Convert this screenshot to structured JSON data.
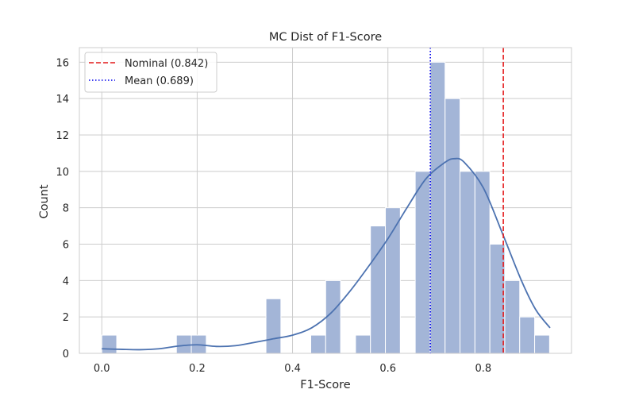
{
  "chart_data": {
    "type": "bar",
    "title": "MC Dist of F1-Score",
    "xlabel": "F1-Score",
    "ylabel": "Count",
    "xlim": [
      -0.047,
      0.985
    ],
    "ylim": [
      0,
      16.8
    ],
    "x_ticks": [
      0.0,
      0.2,
      0.4,
      0.6,
      0.8
    ],
    "x_tick_labels": [
      "0.0",
      "0.2",
      "0.4",
      "0.6",
      "0.8"
    ],
    "y_ticks": [
      0,
      2,
      4,
      6,
      8,
      10,
      12,
      14,
      16
    ],
    "y_tick_labels": [
      "0",
      "2",
      "4",
      "6",
      "8",
      "10",
      "12",
      "14",
      "16"
    ],
    "grid": true,
    "legend_position": "top-left",
    "bin_width": 0.0313,
    "bins": [
      {
        "start": 0.0,
        "count": 1
      },
      {
        "start": 0.0313,
        "count": 0
      },
      {
        "start": 0.0626,
        "count": 0
      },
      {
        "start": 0.0939,
        "count": 0
      },
      {
        "start": 0.1252,
        "count": 0
      },
      {
        "start": 0.1565,
        "count": 1
      },
      {
        "start": 0.1878,
        "count": 1
      },
      {
        "start": 0.2191,
        "count": 0
      },
      {
        "start": 0.2504,
        "count": 0
      },
      {
        "start": 0.2817,
        "count": 0
      },
      {
        "start": 0.313,
        "count": 0
      },
      {
        "start": 0.3443,
        "count": 3
      },
      {
        "start": 0.3756,
        "count": 0
      },
      {
        "start": 0.4069,
        "count": 0
      },
      {
        "start": 0.4382,
        "count": 1
      },
      {
        "start": 0.4695,
        "count": 4
      },
      {
        "start": 0.5008,
        "count": 0
      },
      {
        "start": 0.5321,
        "count": 1
      },
      {
        "start": 0.5634,
        "count": 7
      },
      {
        "start": 0.5947,
        "count": 8
      },
      {
        "start": 0.626,
        "count": 0
      },
      {
        "start": 0.6573,
        "count": 10
      },
      {
        "start": 0.6886,
        "count": 16
      },
      {
        "start": 0.7199,
        "count": 14
      },
      {
        "start": 0.7512,
        "count": 10
      },
      {
        "start": 0.7825,
        "count": 10
      },
      {
        "start": 0.8138,
        "count": 6
      },
      {
        "start": 0.8451,
        "count": 4
      },
      {
        "start": 0.8764,
        "count": 2
      },
      {
        "start": 0.9077,
        "count": 1
      }
    ],
    "kde": {
      "name": "KDE",
      "points": [
        [
          0.0,
          0.25
        ],
        [
          0.04,
          0.22
        ],
        [
          0.08,
          0.2
        ],
        [
          0.12,
          0.25
        ],
        [
          0.16,
          0.4
        ],
        [
          0.2,
          0.47
        ],
        [
          0.24,
          0.38
        ],
        [
          0.28,
          0.42
        ],
        [
          0.32,
          0.6
        ],
        [
          0.36,
          0.8
        ],
        [
          0.4,
          1.0
        ],
        [
          0.44,
          1.4
        ],
        [
          0.48,
          2.2
        ],
        [
          0.52,
          3.4
        ],
        [
          0.56,
          4.8
        ],
        [
          0.6,
          6.3
        ],
        [
          0.64,
          8.0
        ],
        [
          0.68,
          9.6
        ],
        [
          0.72,
          10.5
        ],
        [
          0.74,
          10.7
        ],
        [
          0.76,
          10.5
        ],
        [
          0.8,
          9.1
        ],
        [
          0.84,
          6.6
        ],
        [
          0.88,
          4.0
        ],
        [
          0.91,
          2.4
        ],
        [
          0.94,
          1.4
        ]
      ]
    },
    "reference_lines": [
      {
        "label": "Nominal (0.842)",
        "x": 0.842,
        "color": "#e41a1c",
        "style": "dashed"
      },
      {
        "label": "Mean (0.689)",
        "x": 0.689,
        "color": "#0000ee",
        "style": "dotted"
      }
    ],
    "colors": {
      "bar_fill": "#a3b5d7",
      "bar_stroke": "#ffffff",
      "kde_line": "#4c72b0",
      "grid": "#cccccc",
      "frame": "#cccccc"
    }
  }
}
